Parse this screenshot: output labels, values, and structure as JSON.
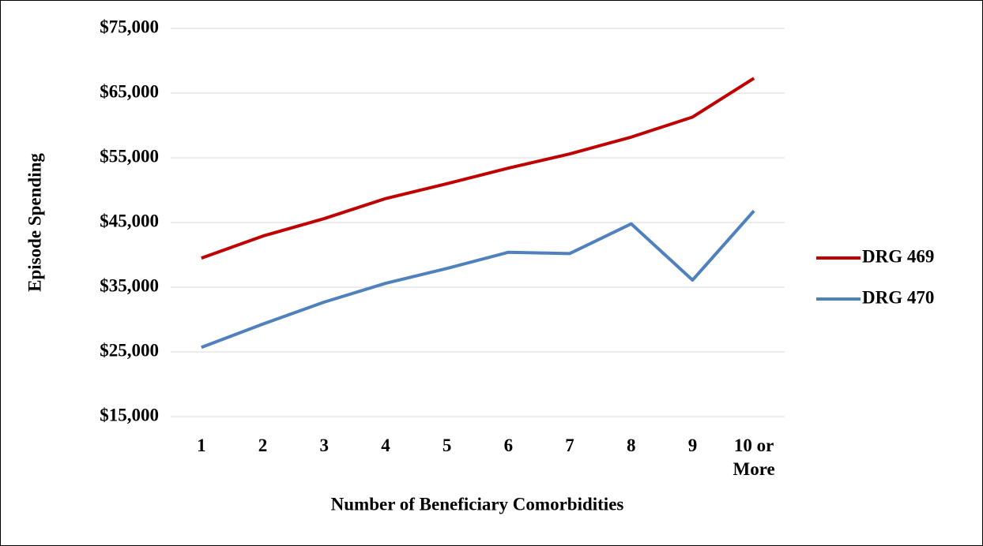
{
  "chart_data": {
    "type": "line",
    "x_label": "Number of Beneficiary Comorbidities",
    "y_label": "Episode Spending",
    "categories": [
      "1",
      "2",
      "3",
      "4",
      "5",
      "6",
      "7",
      "8",
      "9",
      "10 or More"
    ],
    "series": [
      {
        "name": "DRG 469",
        "color": "#c00000",
        "values": [
          39500,
          42900,
          45600,
          48700,
          51000,
          53400,
          55600,
          58200,
          61300,
          67300
        ]
      },
      {
        "name": "DRG 470",
        "color": "#4f81bd",
        "values": [
          25700,
          29300,
          32700,
          35600,
          37900,
          40400,
          40200,
          44800,
          36100,
          46800
        ]
      }
    ],
    "ylim": [
      15000,
      75000
    ],
    "yticks": [
      {
        "value": 15000,
        "label": "$15,000"
      },
      {
        "value": 25000,
        "label": "$25,000"
      },
      {
        "value": 35000,
        "label": "$35,000"
      },
      {
        "value": 45000,
        "label": "$45,000"
      },
      {
        "value": 55000,
        "label": "$55,000"
      },
      {
        "value": 65000,
        "label": "$65,000"
      },
      {
        "value": 75000,
        "label": "$75,000"
      }
    ],
    "grid": true,
    "legend": "right"
  }
}
